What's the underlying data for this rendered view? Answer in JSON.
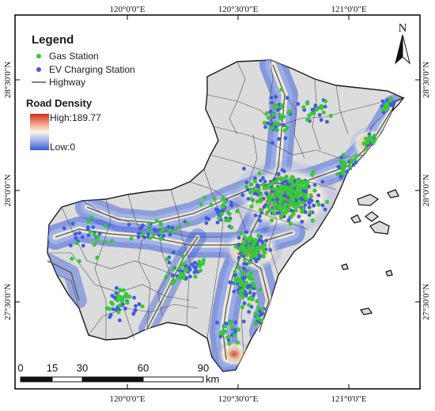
{
  "map": {
    "top_ticks": [
      "120°0'0\"E",
      "120°30'0\"E",
      "121°0'0\"E"
    ],
    "bottom_ticks": [
      "120°0'0\"E",
      "120°30'0\"E",
      "121°0'0\"E"
    ],
    "left_ticks": [
      "28°30'0\"N",
      "28°0'0\"N",
      "27°30'0\"N"
    ],
    "right_ticks": [
      "28°30'0\"N",
      "28°0'0\"N",
      "27°30'0\"N"
    ]
  },
  "legend": {
    "title": "Legend",
    "gas_station": "Gas Station",
    "ev_station": "EV Charging Station",
    "highway": "Highway",
    "gas_color": "#37c837",
    "ev_color": "#3f5be0",
    "highway_color": "#555555"
  },
  "density": {
    "title": "Road Density",
    "high": "High:189.77",
    "low": "Low:0",
    "high_color": "#d42a1c",
    "low_color": "#3b5bd8"
  },
  "scale": {
    "labels": [
      "0",
      "15",
      "30",
      "60",
      "90"
    ],
    "unit": "km"
  },
  "north_arrow": {
    "label": "N"
  }
}
